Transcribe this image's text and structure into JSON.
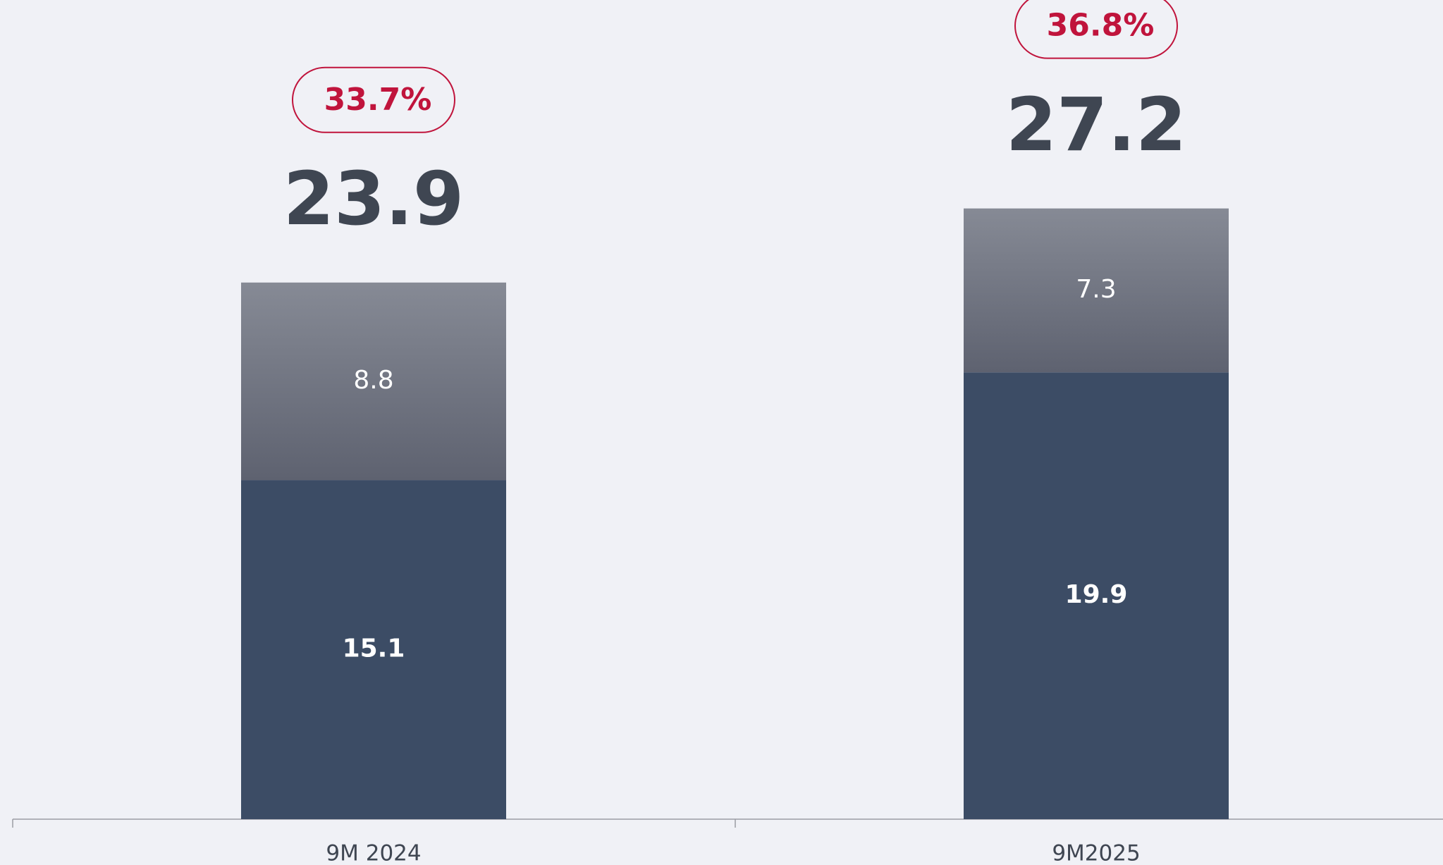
{
  "chart_data": {
    "type": "stacked_bar",
    "categories": [
      "9M 2024",
      "9M2025"
    ],
    "series": [
      {
        "color": "#3c4c65",
        "values": [
          15.1,
          19.9
        ]
      },
      {
        "color": "#71757f",
        "gradient": [
          "#868a95",
          "#5e6270"
        ],
        "values": [
          8.8,
          7.3
        ]
      }
    ],
    "totals": [
      23.9,
      27.2
    ],
    "annotations": {
      "values": [
        33.7,
        36.8
      ],
      "value_labels": [
        "33.7%",
        "36.8%"
      ],
      "color": "#c0143c"
    }
  }
}
